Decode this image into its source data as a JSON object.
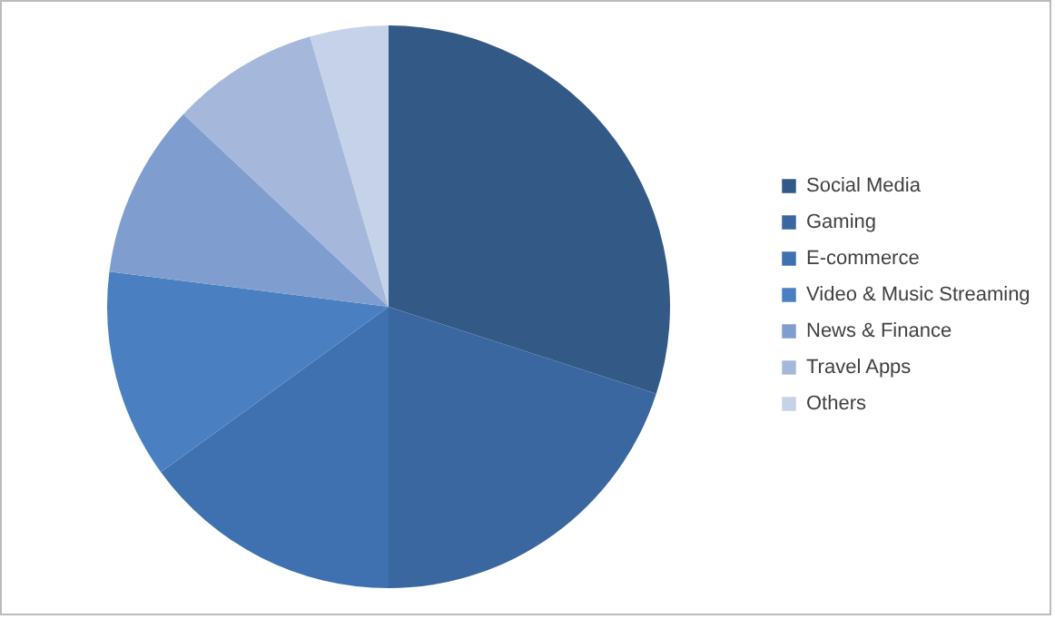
{
  "chart_data": {
    "type": "pie",
    "categories": [
      "Social Media",
      "Gaming",
      "E-commerce",
      "Video & Music Streaming",
      "News & Finance",
      "Travel Apps",
      "Others"
    ],
    "values": [
      30,
      20,
      15,
      12,
      10,
      8.5,
      4.5
    ],
    "colors": [
      "#335a87",
      "#3a67a0",
      "#3f71b0",
      "#4a80c2",
      "#7f9ecf",
      "#a5b8db",
      "#c6d2e9"
    ],
    "legend": "right"
  }
}
